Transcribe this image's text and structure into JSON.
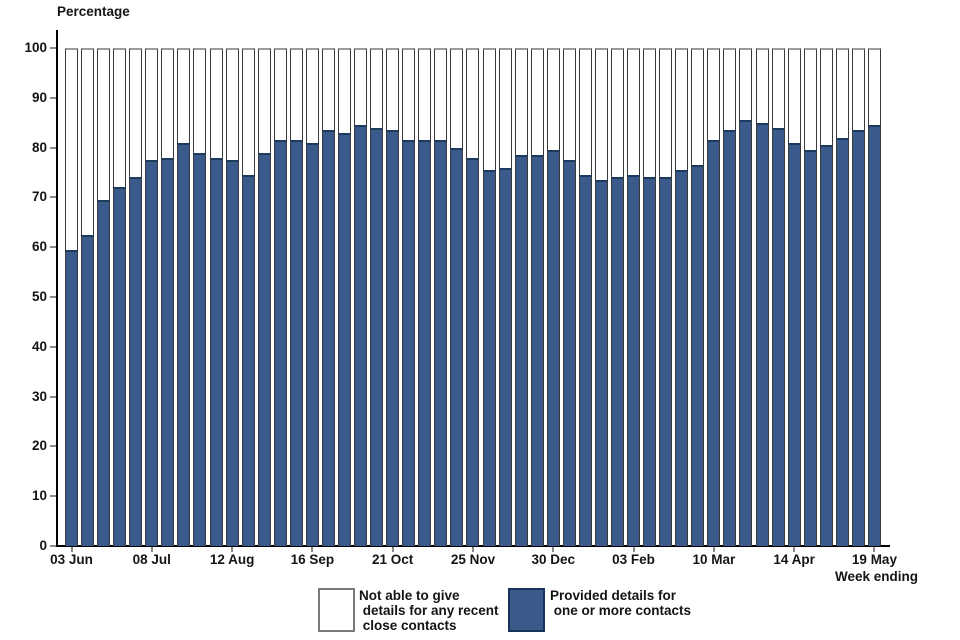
{
  "chart": {
    "title": "Percentage",
    "x_axis_title": "Week ending",
    "y_ticks": [
      0,
      10,
      20,
      30,
      40,
      50,
      60,
      70,
      80,
      90,
      100
    ],
    "x_tick_labels": [
      "03 Jun",
      "08 Jul",
      "12 Aug",
      "16 Sep",
      "21 Oct",
      "25 Nov",
      "30 Dec",
      "03 Feb",
      "10 Mar",
      "14 Apr",
      "19 May"
    ]
  },
  "legend": [
    {
      "label": "Not able to give\n details for any recent\n close contacts",
      "color": "#ffffff"
    },
    {
      "label": "Provided details for\n one or more contacts",
      "color": "#3a5a8c"
    }
  ],
  "colors": {
    "bar_blue": "#3a5a8c",
    "bar_border": "#3a3a3a",
    "blue_cap": "#1c3a5c",
    "white_cap": "#9b9b9b",
    "axis": "#000000",
    "tick": "#8a8a8a"
  },
  "chart_data": {
    "type": "bar",
    "stacked": true,
    "title": "Percentage",
    "xlabel": "Week ending",
    "ylabel": "Percentage",
    "ylim": [
      0,
      100
    ],
    "grid": false,
    "legend_position": "bottom",
    "x_tick_labels": [
      "03 Jun",
      "08 Jul",
      "12 Aug",
      "16 Sep",
      "21 Oct",
      "25 Nov",
      "30 Dec",
      "03 Feb",
      "10 Mar",
      "14 Apr",
      "19 May"
    ],
    "categories": [
      "03 Jun",
      "10 Jun",
      "17 Jun",
      "24 Jun",
      "01 Jul",
      "08 Jul",
      "15 Jul",
      "22 Jul",
      "29 Jul",
      "05 Aug",
      "12 Aug",
      "19 Aug",
      "26 Aug",
      "02 Sep",
      "09 Sep",
      "16 Sep",
      "23 Sep",
      "30 Sep",
      "07 Oct",
      "14 Oct",
      "21 Oct",
      "28 Oct",
      "04 Nov",
      "11 Nov",
      "18 Nov",
      "25 Nov",
      "02 Dec",
      "09 Dec",
      "16 Dec",
      "23 Dec",
      "30 Dec",
      "06 Jan",
      "13 Jan",
      "20 Jan",
      "27 Jan",
      "03 Feb",
      "10 Feb",
      "17 Feb",
      "24 Feb",
      "03 Mar",
      "10 Mar",
      "17 Mar",
      "24 Mar",
      "31 Mar",
      "07 Apr",
      "14 Apr",
      "21 Apr",
      "28 Apr",
      "05 May",
      "12 May",
      "19 May"
    ],
    "series": [
      {
        "name": "Provided details for one or more contacts",
        "color": "#3a5a8c",
        "values": [
          59.5,
          62.5,
          69.5,
          72,
          74,
          77.5,
          78,
          81,
          79,
          78,
          77.5,
          74.5,
          79,
          81.5,
          81.5,
          81,
          83.5,
          83,
          84.5,
          84,
          83.5,
          81.5,
          81.5,
          81.5,
          80,
          78,
          75.5,
          76,
          78.5,
          78.5,
          79.5,
          77.5,
          74.5,
          73.5,
          74,
          74.5,
          74,
          74,
          75.5,
          76.5,
          81.5,
          83.5,
          85.5,
          85,
          84,
          81,
          79.5,
          80.5,
          82,
          83.5,
          84.5
        ]
      },
      {
        "name": "Not able to give details for any recent close contacts",
        "color": "#ffffff",
        "values": [
          40.5,
          37.5,
          30.5,
          28,
          26,
          22.5,
          22,
          19,
          21,
          22,
          22.5,
          25.5,
          21,
          18.5,
          18.5,
          19,
          16.5,
          17,
          15.5,
          16,
          16.5,
          18.5,
          18.5,
          18.5,
          20,
          22,
          24.5,
          24,
          21.5,
          21.5,
          20.5,
          22.5,
          25.5,
          26.5,
          26,
          25.5,
          26,
          26,
          24.5,
          23.5,
          18.5,
          16.5,
          14.5,
          15,
          16,
          19,
          20.5,
          19.5,
          18,
          16.5,
          15.5
        ]
      }
    ]
  }
}
